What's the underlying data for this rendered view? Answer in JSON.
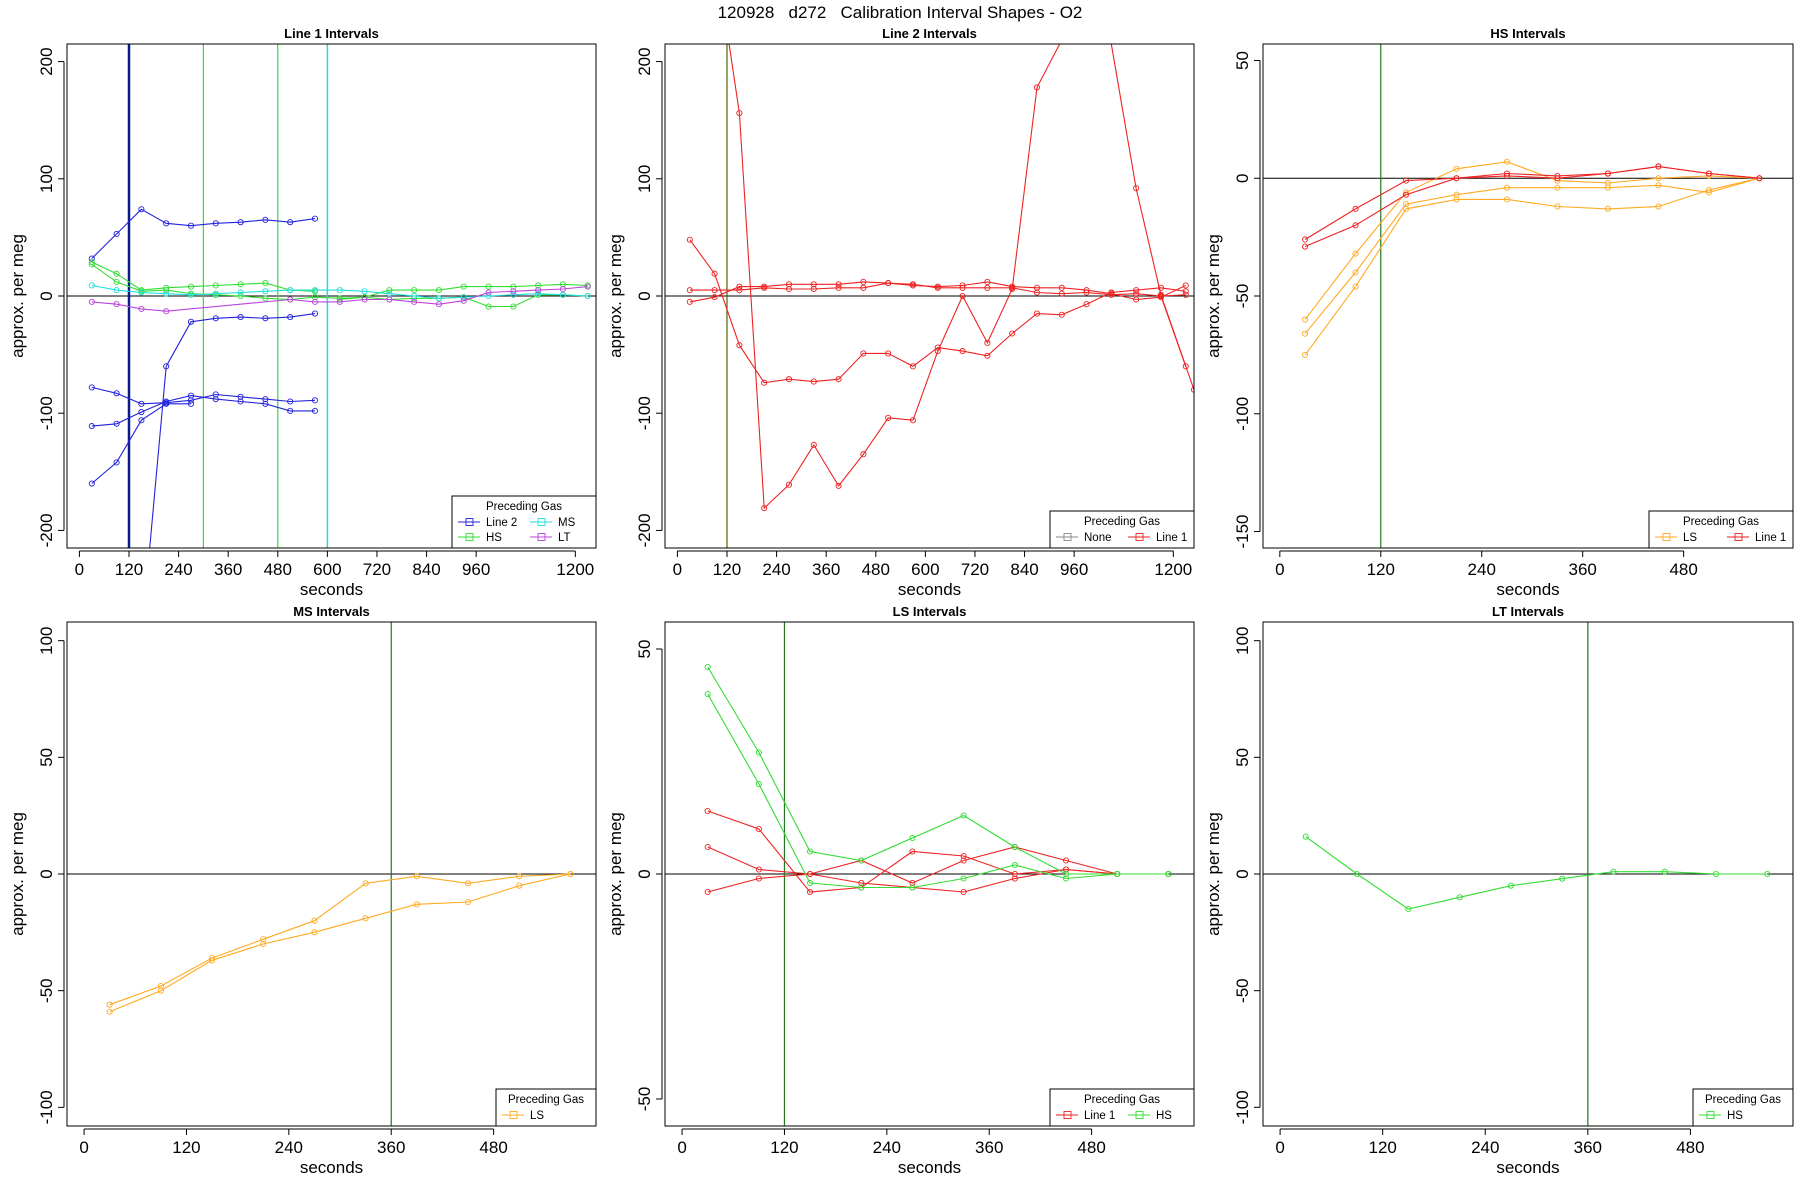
{
  "title": "120928   d272   Calibration Interval Shapes - O2",
  "colors": {
    "Line 2": "#2222dd",
    "HS": "#33dd33",
    "MS": "#22dddd",
    "LT": "#bb44dd",
    "None": "#888888",
    "Line 1": "#ee2222",
    "LS": "#ffaa22"
  },
  "chart_data": [
    {
      "type": "line",
      "title": "Line 1 Intervals",
      "xlabel": "seconds",
      "ylabel": "approx. per meg",
      "xlim": [
        -30,
        1250
      ],
      "ylim": [
        -215,
        215
      ],
      "xticks": [
        0,
        120,
        240,
        360,
        480,
        600,
        720,
        840,
        960,
        1200
      ],
      "yticks": [
        -200,
        -100,
        0,
        100,
        200
      ],
      "hline": 0,
      "vlines": [
        {
          "x": 120,
          "color": "#0a1a88",
          "width": 2.5
        },
        {
          "x": 300,
          "color": "#33dd33",
          "width": 1.2
        },
        {
          "x": 480,
          "color": "#33dd33",
          "width": 1.2
        },
        {
          "x": 600,
          "color": "#22dddd",
          "width": 1.5
        }
      ],
      "legend": {
        "title": "Preceding Gas",
        "entries": [
          "Line 2",
          "MS",
          "HS",
          "LT"
        ],
        "ncol": 2
      },
      "series": [
        {
          "gas": "Line 2",
          "x": [
            30,
            90,
            150,
            210,
            270,
            330,
            390,
            450,
            510,
            570
          ],
          "y": [
            32,
            53,
            74,
            62,
            60,
            62,
            63,
            65,
            63,
            66
          ]
        },
        {
          "gas": "Line 2",
          "x": [
            30,
            90,
            150,
            210,
            270,
            330,
            390,
            450,
            510,
            570
          ],
          "y": [
            -78,
            -83,
            -92,
            -91,
            -89,
            -84,
            -86,
            -88,
            -90,
            -89
          ]
        },
        {
          "gas": "Line 2",
          "x": [
            30,
            90,
            150,
            210,
            270,
            330,
            390,
            450,
            510,
            570
          ],
          "y": [
            -111,
            -109,
            -99,
            -90,
            -85,
            -88,
            -90,
            -92,
            -98,
            -98
          ]
        },
        {
          "gas": "Line 2",
          "x": [
            30,
            90,
            150,
            210,
            270,
            330,
            390,
            450,
            510,
            570
          ],
          "y": [
            -160,
            -142,
            -106,
            -92,
            -92,
            null,
            null,
            null,
            null,
            null
          ]
        },
        {
          "gas": "Line 2",
          "x": [
            170,
            210,
            270,
            330,
            390,
            450,
            510,
            570
          ],
          "y": [
            -215,
            -60,
            -22,
            -19,
            -18,
            -19,
            -18,
            -15
          ]
        },
        {
          "gas": "HS",
          "x": [
            30,
            90,
            150,
            210,
            270,
            330,
            390,
            450,
            510,
            570
          ],
          "y": [
            29,
            19,
            5,
            7,
            8,
            9,
            10,
            11,
            5,
            4
          ]
        },
        {
          "gas": "HS",
          "x": [
            30,
            90,
            150,
            210,
            270,
            330,
            390,
            450,
            510,
            570,
            630,
            690,
            750,
            810,
            870,
            930,
            990,
            1050,
            1110,
            1170,
            1230
          ],
          "y": [
            27,
            12,
            4,
            5,
            2,
            1,
            0,
            -2,
            -3,
            -1,
            -2,
            -1,
            5,
            5,
            5,
            8,
            8,
            8,
            9,
            10,
            9
          ]
        },
        {
          "gas": "HS",
          "x": [
            630,
            690,
            750,
            810,
            870,
            930,
            990,
            1050,
            1110,
            1170,
            1230
          ],
          "y": [
            -3,
            -1,
            -3,
            -2,
            -2,
            -1,
            -9,
            -9,
            1,
            1,
            0
          ]
        },
        {
          "gas": "MS",
          "x": [
            30,
            90,
            150,
            210,
            270,
            330,
            390,
            450,
            510,
            570,
            630,
            690,
            750,
            810,
            870,
            930,
            990,
            1050,
            1110,
            1170,
            1230
          ],
          "y": [
            9,
            5,
            3,
            2,
            1,
            2,
            3,
            4,
            5,
            5,
            5,
            4,
            2,
            0,
            -2,
            -1,
            0,
            1,
            2,
            1,
            0
          ]
        },
        {
          "gas": "LT",
          "x": [
            30,
            90,
            150,
            210,
            510,
            570,
            630,
            690,
            750,
            810,
            870,
            930,
            990,
            1050,
            1110,
            1170,
            1230
          ],
          "y": [
            -5,
            -7,
            -11,
            -13,
            -3,
            -5,
            -5,
            -3,
            -3,
            -5,
            -7,
            -4,
            3,
            4,
            5,
            6,
            8
          ]
        }
      ]
    },
    {
      "type": "line",
      "title": "Line 2 Intervals",
      "xlabel": "seconds",
      "ylabel": "approx. per meg",
      "xlim": [
        -30,
        1250
      ],
      "ylim": [
        -215,
        215
      ],
      "xticks": [
        0,
        120,
        240,
        360,
        480,
        600,
        720,
        840,
        960,
        1200
      ],
      "yticks": [
        -200,
        -100,
        0,
        100,
        200
      ],
      "hline": 0,
      "vlines": [
        {
          "x": 120,
          "color": "#556600",
          "width": 1.2
        }
      ],
      "legend": {
        "title": "Preceding Gas",
        "entries": [
          "None",
          "Line 1"
        ],
        "ncol": 2
      },
      "series": [
        {
          "gas": "Line 1",
          "x": [
            30,
            90,
            150,
            210,
            270,
            330,
            390,
            450,
            510,
            570,
            630,
            690,
            750,
            810,
            870,
            930,
            990,
            1050,
            1110,
            1170,
            1230
          ],
          "y": [
            48,
            19,
            -42,
            -74,
            -71,
            -73,
            -71,
            -49,
            -49,
            -60,
            -44,
            -47,
            -51,
            -32,
            -15,
            -16,
            -7,
            3,
            5,
            7,
            4
          ]
        },
        {
          "gas": "Line 1",
          "x": [
            30,
            90,
            150,
            210,
            270,
            330,
            390,
            450,
            510,
            570,
            630,
            690,
            750,
            810,
            870,
            930,
            990,
            1050,
            1110,
            1170,
            1230
          ],
          "y": [
            -5,
            -1,
            8,
            8,
            10,
            10,
            10,
            12,
            11,
            9,
            8,
            9,
            12,
            8,
            7,
            7,
            5,
            2,
            -3,
            -1,
            9
          ]
        },
        {
          "gas": "Line 1",
          "x": [
            30,
            90,
            150,
            210,
            270,
            330,
            390,
            450,
            510,
            570,
            630,
            690,
            750,
            810,
            870,
            930,
            990,
            1050,
            1110,
            1170,
            1230
          ],
          "y": [
            5,
            5,
            5,
            7,
            6,
            6,
            7,
            7,
            11,
            10,
            7,
            7,
            7,
            7,
            3,
            2,
            3,
            1,
            2,
            0,
            1
          ]
        },
        {
          "gas": "Line 1",
          "x": [
            125,
            150,
            210,
            270,
            330,
            390,
            450,
            510,
            570,
            630,
            690,
            750,
            810,
            870,
            925,
            1050,
            1110,
            1170,
            1250
          ],
          "y": [
            215,
            156,
            -181,
            -161,
            -127,
            -162,
            -135,
            -104,
            -106,
            -47,
            0,
            -40,
            6,
            178,
            215,
            215,
            92,
            1,
            -80
          ]
        },
        {
          "gas": "Line 1",
          "x": [
            1170,
            1230
          ],
          "y": [
            0,
            -60
          ]
        }
      ]
    },
    {
      "type": "line",
      "title": "HS Intervals",
      "xlabel": "seconds",
      "ylabel": "approx. per meg",
      "xlim": [
        -20,
        610
      ],
      "ylim": [
        -157,
        57
      ],
      "xticks": [
        0,
        120,
        240,
        360,
        480
      ],
      "yticks": [
        -150,
        -100,
        -50,
        0,
        50
      ],
      "hline": 0,
      "vlines": [
        {
          "x": 120,
          "color": "#227722",
          "width": 1.2
        }
      ],
      "legend": {
        "title": "Preceding Gas",
        "entries": [
          "LS",
          "Line 1"
        ],
        "ncol": 2
      },
      "series": [
        {
          "gas": "LS",
          "x": [
            30,
            90,
            150,
            210,
            270,
            330,
            390,
            450,
            510,
            570
          ],
          "y": [
            -60,
            -32,
            -6,
            4,
            7,
            -1,
            -2,
            0,
            1,
            0
          ]
        },
        {
          "gas": "LS",
          "x": [
            30,
            90,
            150,
            210,
            270,
            330,
            390,
            450,
            510,
            570
          ],
          "y": [
            -66,
            -40,
            -11,
            -7,
            -4,
            -4,
            -4,
            -3,
            -6,
            0
          ]
        },
        {
          "gas": "LS",
          "x": [
            30,
            90,
            150,
            210,
            270,
            330,
            390,
            450,
            510,
            570
          ],
          "y": [
            -75,
            -46,
            -13,
            -9,
            -9,
            -12,
            -13,
            -12,
            -5,
            0
          ]
        },
        {
          "gas": "Line 1",
          "x": [
            30,
            90,
            150,
            210,
            270,
            330,
            390,
            450,
            510,
            570
          ],
          "y": [
            -26,
            -13,
            -1,
            0,
            2,
            1,
            2,
            5,
            2,
            0
          ]
        },
        {
          "gas": "Line 1",
          "x": [
            30,
            90,
            150,
            210,
            270,
            330,
            390,
            450,
            510,
            570
          ],
          "y": [
            -29,
            -20,
            -7,
            0,
            1,
            0,
            2,
            5,
            2,
            0
          ]
        }
      ]
    },
    {
      "type": "line",
      "title": "MS Intervals",
      "xlabel": "seconds",
      "ylabel": "approx. per meg",
      "xlim": [
        -20,
        600
      ],
      "ylim": [
        -108,
        108
      ],
      "xticks": [
        0,
        120,
        240,
        360,
        480
      ],
      "yticks": [
        -100,
        -50,
        0,
        50,
        100
      ],
      "hline": 0,
      "vlines": [
        {
          "x": 360,
          "color": "#227722",
          "width": 1.2
        }
      ],
      "legend": {
        "title": "Preceding Gas",
        "entries": [
          "LS"
        ],
        "ncol": 1
      },
      "series": [
        {
          "gas": "LS",
          "x": [
            30,
            90,
            150,
            210,
            270,
            330,
            390,
            450,
            510,
            570
          ],
          "y": [
            -56,
            -48,
            -36,
            -28,
            -20,
            -4,
            -1,
            -4,
            -1,
            0
          ]
        },
        {
          "gas": "LS",
          "x": [
            30,
            90,
            150,
            210,
            270,
            330,
            390,
            450,
            510,
            570
          ],
          "y": [
            -59,
            -50,
            -37,
            -30,
            -25,
            -19,
            -13,
            -12,
            -5,
            0
          ]
        }
      ]
    },
    {
      "type": "line",
      "title": "LS Intervals",
      "xlabel": "seconds",
      "ylabel": "approx. per meg",
      "xlim": [
        -20,
        600
      ],
      "ylim": [
        -56,
        56
      ],
      "xticks": [
        0,
        120,
        240,
        360,
        480
      ],
      "yticks": [
        -50,
        0,
        50
      ],
      "hline": 0,
      "vlines": [
        {
          "x": 120,
          "color": "#227722",
          "width": 1.2
        }
      ],
      "legend": {
        "title": "Preceding Gas",
        "entries": [
          "Line 1",
          "HS"
        ],
        "ncol": 2
      },
      "series": [
        {
          "gas": "Line 1",
          "x": [
            30,
            90,
            150,
            210,
            270,
            330,
            390,
            450,
            510,
            570
          ],
          "y": [
            14,
            10,
            -4,
            -3,
            5,
            4,
            0,
            1,
            0,
            0
          ]
        },
        {
          "gas": "Line 1",
          "x": [
            30,
            90,
            150,
            210,
            270,
            330,
            390,
            450,
            510,
            570
          ],
          "y": [
            6,
            1,
            0,
            3,
            -2,
            3,
            6,
            3,
            0,
            0
          ]
        },
        {
          "gas": "Line 1",
          "x": [
            30,
            90,
            150,
            210,
            270,
            330,
            390,
            450,
            510,
            570
          ],
          "y": [
            -4,
            -1,
            0,
            -2,
            -3,
            -4,
            -1,
            1,
            0,
            0
          ]
        },
        {
          "gas": "HS",
          "x": [
            30,
            90,
            150,
            210,
            270,
            330,
            390,
            450,
            510,
            570
          ],
          "y": [
            46,
            27,
            5,
            3,
            8,
            13,
            6,
            0,
            0,
            0
          ]
        },
        {
          "gas": "HS",
          "x": [
            30,
            90,
            150,
            210,
            270,
            330,
            390,
            450,
            510,
            570
          ],
          "y": [
            40,
            20,
            -2,
            -3,
            -3,
            -1,
            2,
            -1,
            0,
            0
          ]
        }
      ]
    },
    {
      "type": "line",
      "title": "LT Intervals",
      "xlabel": "seconds",
      "ylabel": "approx. per meg",
      "xlim": [
        -20,
        600
      ],
      "ylim": [
        -108,
        108
      ],
      "xticks": [
        0,
        120,
        240,
        360,
        480
      ],
      "yticks": [
        -100,
        -50,
        0,
        50,
        100
      ],
      "hline": 0,
      "vlines": [
        {
          "x": 360,
          "color": "#227722",
          "width": 1.2
        }
      ],
      "legend": {
        "title": "Preceding Gas",
        "entries": [
          "HS"
        ],
        "ncol": 1
      },
      "series": [
        {
          "gas": "HS",
          "x": [
            30,
            90,
            150,
            210,
            270,
            330,
            390,
            450,
            510,
            570
          ],
          "y": [
            16,
            0,
            -15,
            -10,
            -5,
            -2,
            1,
            1,
            0,
            0
          ]
        }
      ]
    }
  ]
}
